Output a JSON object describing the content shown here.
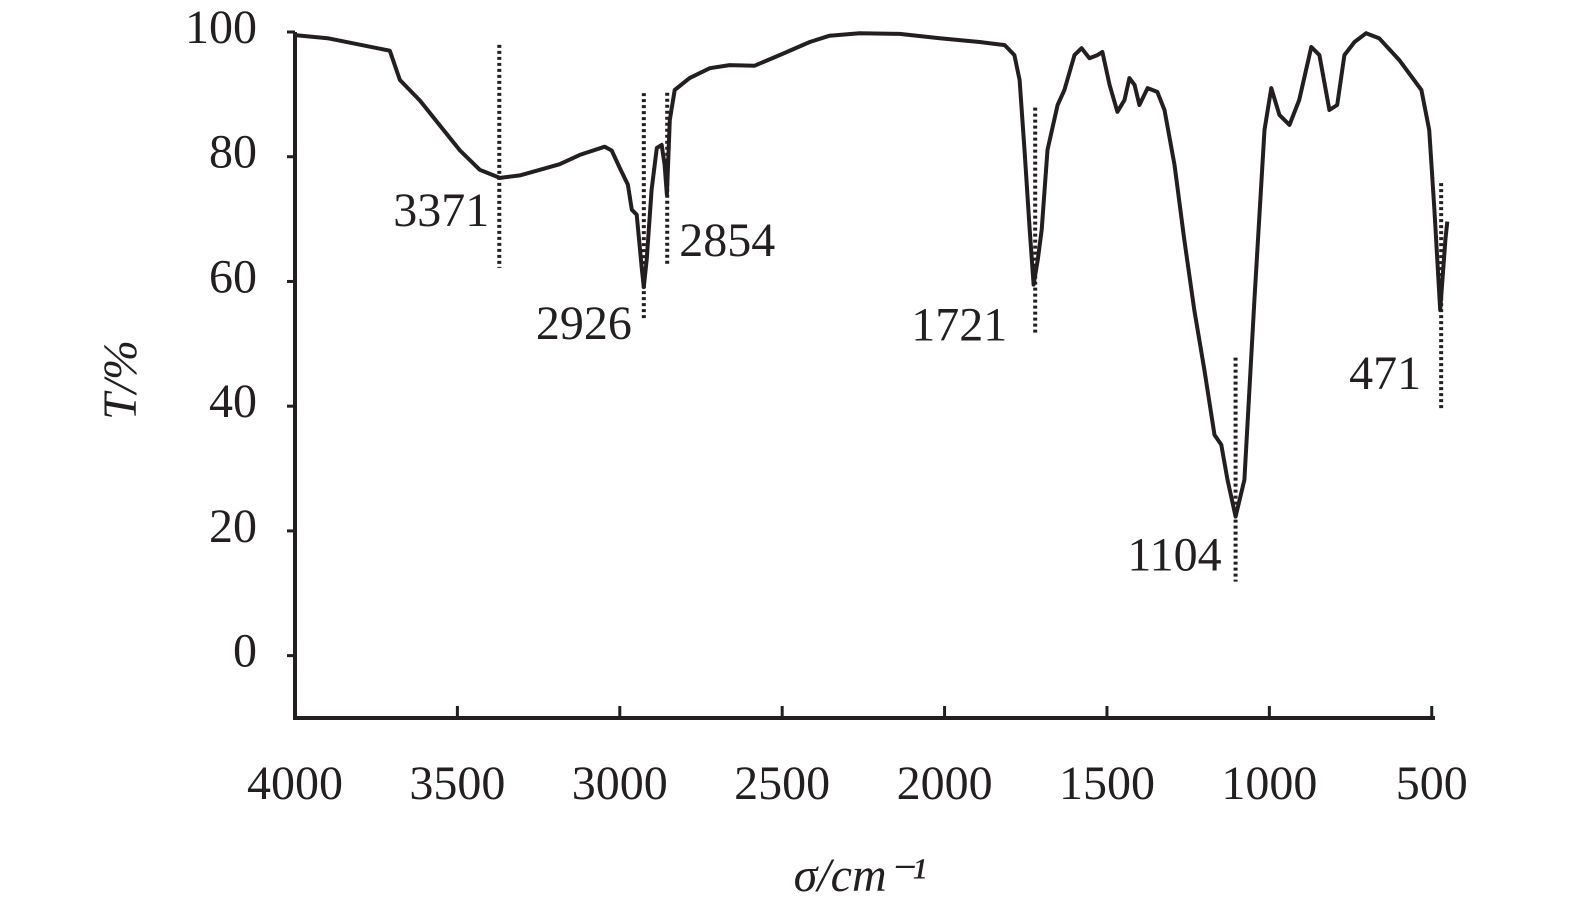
{
  "chart_data": {
    "type": "line",
    "xlabel": "σ/cm⁻¹",
    "ylabel": "T/%",
    "x": [
      4000,
      3900,
      3708,
      3677,
      3615,
      3554,
      3492,
      3431,
      3369,
      3308,
      3246,
      3185,
      3123,
      3046,
      3025,
      3000,
      2975,
      2963,
      2948,
      2932,
      2926,
      2917,
      2902,
      2886,
      2871,
      2862,
      2855,
      2846,
      2831,
      2785,
      2723,
      2662,
      2585,
      2508,
      2415,
      2354,
      2262,
      2138,
      2015,
      1892,
      1815,
      1785,
      1769,
      1754,
      1738,
      1726,
      1713,
      1701,
      1683,
      1652,
      1631,
      1600,
      1578,
      1554,
      1529,
      1514,
      1492,
      1468,
      1446,
      1431,
      1415,
      1400,
      1375,
      1345,
      1323,
      1292,
      1262,
      1231,
      1200,
      1169,
      1148,
      1129,
      1104,
      1077,
      1046,
      1015,
      994,
      969,
      938,
      908,
      871,
      846,
      815,
      791,
      769,
      738,
      702,
      662,
      600,
      532,
      508,
      492,
      474,
      458,
      452
    ],
    "values": [
      99.5,
      99,
      97,
      92.3,
      89,
      85,
      81,
      77.9,
      76.6,
      77,
      77.9,
      78.8,
      80.3,
      81.6,
      81,
      78.2,
      75.5,
      71.5,
      70.7,
      61.9,
      59.1,
      63.5,
      74.7,
      81.4,
      81.9,
      78.7,
      73.9,
      85.9,
      90.7,
      92.6,
      94.2,
      94.7,
      94.6,
      96.3,
      98.4,
      99.4,
      99.8,
      99.7,
      99,
      98.4,
      97.9,
      96.3,
      92.3,
      81.1,
      68.3,
      59.5,
      63.5,
      68.3,
      81.1,
      88.3,
      90.7,
      96.3,
      97.4,
      95.8,
      96.3,
      96.8,
      91.5,
      87.2,
      89.1,
      92.6,
      91.5,
      88.3,
      91,
      90.4,
      87.5,
      78.7,
      66.7,
      55.4,
      45.8,
      35.4,
      33.8,
      28.2,
      22.3,
      28.2,
      57,
      84.3,
      91,
      86.7,
      85.1,
      89.1,
      97.6,
      96.3,
      87.5,
      88.3,
      96.3,
      98.4,
      99.8,
      99,
      95.5,
      90.7,
      84.3,
      71.5,
      55.4,
      66.7,
      69.6
    ],
    "color": "#231f20",
    "xlim": [
      4000,
      490
    ],
    "xticks": [
      4000,
      3500,
      3000,
      2500,
      2000,
      1500,
      1000,
      500
    ],
    "ylim": [
      -10,
      100
    ],
    "yticks": [
      0,
      20,
      40,
      60,
      80,
      100
    ],
    "annotations": [
      {
        "x": 3371,
        "y": 76.6
      },
      {
        "x": 2926,
        "y": 59.1
      },
      {
        "x": 2854,
        "y": 73.9
      },
      {
        "x": 1721,
        "y": 59.5
      },
      {
        "x": 1104,
        "y": 22.3
      },
      {
        "x": 471,
        "y": 55.4
      }
    ]
  }
}
